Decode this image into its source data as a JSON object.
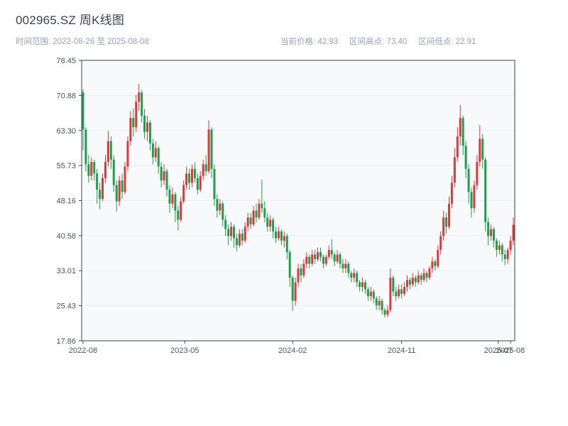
{
  "header": {
    "title": "002965.SZ 周K线图",
    "time_range": "时间范围: 2022-08-26 至 2025-08-08",
    "stat_price": "当前价格: 42.93",
    "stat_high": "区间高点: 73.40",
    "stat_low": "区间低点: 22.91"
  },
  "colors": {
    "up": "#d93a3e",
    "down": "#1f9e4d",
    "axis": "#3c434b",
    "grid": "#e9edf1",
    "plot_bg": "#f7f9fa",
    "tick_text": "#4a525c"
  },
  "chart_data": {
    "type": "candlestick",
    "title": "002965.SZ 周K线图",
    "symbol": "002965.SZ",
    "interval": "weekly",
    "start_date": "2022-08-26",
    "end_date": "2025-08-08",
    "current_price": 42.93,
    "range_high": 73.4,
    "range_low": 22.91,
    "ylim": [
      17.86,
      78.45
    ],
    "y_ticks": [
      78.45,
      70.88,
      63.3,
      55.73,
      48.16,
      40.58,
      33.01,
      25.43,
      17.86
    ],
    "x_ticks": [
      {
        "i": 0,
        "label": "2022-08"
      },
      {
        "i": 36.4,
        "label": "2023-05"
      },
      {
        "i": 75.0,
        "label": "2024-02"
      },
      {
        "i": 114.0,
        "label": "2024-11"
      },
      {
        "i": 148.6,
        "label": "2025-07"
      },
      {
        "i": 153.0,
        "label": "2025-08"
      }
    ],
    "grid": true,
    "legend": "none",
    "ohlc_columns": [
      "open",
      "high",
      "low",
      "close"
    ],
    "ohlc": [
      [
        71.5,
        72.2,
        59.0,
        63.5
      ],
      [
        63.5,
        64.0,
        54.5,
        56.0
      ],
      [
        56.0,
        58.0,
        52.0,
        53.5
      ],
      [
        53.5,
        57.5,
        52.5,
        56.5
      ],
      [
        56.5,
        57.0,
        52.5,
        54.0
      ],
      [
        54.0,
        55.0,
        47.5,
        50.5
      ],
      [
        50.5,
        52.0,
        46.3,
        48.5
      ],
      [
        48.5,
        54.0,
        48.0,
        53.0
      ],
      [
        53.0,
        58.0,
        52.0,
        56.5
      ],
      [
        56.5,
        63.2,
        55.5,
        61.0
      ],
      [
        61.0,
        62.0,
        55.0,
        57.0
      ],
      [
        57.0,
        58.0,
        50.0,
        51.5
      ],
      [
        51.5,
        52.5,
        45.8,
        48.0
      ],
      [
        48.0,
        53.5,
        47.0,
        52.5
      ],
      [
        52.5,
        54.0,
        48.5,
        50.0
      ],
      [
        50.0,
        56.5,
        49.5,
        55.5
      ],
      [
        55.5,
        62.0,
        54.5,
        61.0
      ],
      [
        61.0,
        67.5,
        60.0,
        66.0
      ],
      [
        66.0,
        68.0,
        62.0,
        64.0
      ],
      [
        64.0,
        71.0,
        63.0,
        69.5
      ],
      [
        69.5,
        73.4,
        67.5,
        71.5
      ],
      [
        71.5,
        72.0,
        65.0,
        66.5
      ],
      [
        66.5,
        68.0,
        61.5,
        63.0
      ],
      [
        63.0,
        66.5,
        61.0,
        65.0
      ],
      [
        65.0,
        65.5,
        59.0,
        60.5
      ],
      [
        60.5,
        61.5,
        56.0,
        57.5
      ],
      [
        57.5,
        61.0,
        56.5,
        59.5
      ],
      [
        59.5,
        60.0,
        54.0,
        55.5
      ],
      [
        55.5,
        56.5,
        51.0,
        52.5
      ],
      [
        52.5,
        56.0,
        51.5,
        54.5
      ],
      [
        54.5,
        55.0,
        49.0,
        50.5
      ],
      [
        50.5,
        51.5,
        45.5,
        47.5
      ],
      [
        47.5,
        51.0,
        46.5,
        49.5
      ],
      [
        49.5,
        50.0,
        43.5,
        46.0
      ],
      [
        46.0,
        47.0,
        41.7,
        44.0
      ],
      [
        44.0,
        49.0,
        43.5,
        48.0
      ],
      [
        48.0,
        52.5,
        47.5,
        51.5
      ],
      [
        51.5,
        55.5,
        50.5,
        54.0
      ],
      [
        54.0,
        55.0,
        50.5,
        52.0
      ],
      [
        52.0,
        56.0,
        51.0,
        55.0
      ],
      [
        55.0,
        56.5,
        52.0,
        53.0
      ],
      [
        53.0,
        54.0,
        49.5,
        50.5
      ],
      [
        50.5,
        54.5,
        50.0,
        53.5
      ],
      [
        53.5,
        57.0,
        52.5,
        56.0
      ],
      [
        56.0,
        58.0,
        53.5,
        54.5
      ],
      [
        54.5,
        65.5,
        54.0,
        63.5
      ],
      [
        63.5,
        64.0,
        53.0,
        55.0
      ],
      [
        55.0,
        56.0,
        47.0,
        48.5
      ],
      [
        48.5,
        49.5,
        44.5,
        46.0
      ],
      [
        46.0,
        48.5,
        45.0,
        47.5
      ],
      [
        47.5,
        48.0,
        42.5,
        44.0
      ],
      [
        44.0,
        45.0,
        40.5,
        42.0
      ],
      [
        42.0,
        43.0,
        38.5,
        40.5
      ],
      [
        40.5,
        43.5,
        39.5,
        42.5
      ],
      [
        42.5,
        43.0,
        38.0,
        40.0
      ],
      [
        40.0,
        41.0,
        37.2,
        38.5
      ],
      [
        38.5,
        42.0,
        38.0,
        41.0
      ],
      [
        41.0,
        42.0,
        38.5,
        39.5
      ],
      [
        39.5,
        43.5,
        39.0,
        42.5
      ],
      [
        42.5,
        45.5,
        41.5,
        44.5
      ],
      [
        44.5,
        45.5,
        42.0,
        43.0
      ],
      [
        43.0,
        47.0,
        42.5,
        46.0
      ],
      [
        46.0,
        47.5,
        43.5,
        44.5
      ],
      [
        44.5,
        48.5,
        44.0,
        47.5
      ],
      [
        47.5,
        52.7,
        45.5,
        46.5
      ],
      [
        46.5,
        48.0,
        43.5,
        44.5
      ],
      [
        44.5,
        45.5,
        41.5,
        42.5
      ],
      [
        42.5,
        45.0,
        41.5,
        44.0
      ],
      [
        44.0,
        44.5,
        40.0,
        41.5
      ],
      [
        41.5,
        42.5,
        39.0,
        40.0
      ],
      [
        40.0,
        42.5,
        39.5,
        41.5
      ],
      [
        41.5,
        42.0,
        38.5,
        39.5
      ],
      [
        39.5,
        41.5,
        38.0,
        40.5
      ],
      [
        40.5,
        41.0,
        35.5,
        37.0
      ],
      [
        37.0,
        37.5,
        29.5,
        31.5
      ],
      [
        31.5,
        32.0,
        24.33,
        26.5
      ],
      [
        26.5,
        31.5,
        25.5,
        30.5
      ],
      [
        30.5,
        34.5,
        29.5,
        33.5
      ],
      [
        33.5,
        34.5,
        30.5,
        32.0
      ],
      [
        32.0,
        35.5,
        31.5,
        34.5
      ],
      [
        34.5,
        37.0,
        33.5,
        36.0
      ],
      [
        36.0,
        36.5,
        33.5,
        34.5
      ],
      [
        34.5,
        37.5,
        34.0,
        36.5
      ],
      [
        36.5,
        37.5,
        34.5,
        35.5
      ],
      [
        35.5,
        38.0,
        35.0,
        37.0
      ],
      [
        37.0,
        38.0,
        35.0,
        36.0
      ],
      [
        36.0,
        36.5,
        33.5,
        34.5
      ],
      [
        34.5,
        36.5,
        34.0,
        36.0
      ],
      [
        36.0,
        38.5,
        35.5,
        37.5
      ],
      [
        37.5,
        39.8,
        35.5,
        36.5
      ],
      [
        36.5,
        37.0,
        34.0,
        35.0
      ],
      [
        35.0,
        37.5,
        34.5,
        36.5
      ],
      [
        36.5,
        37.0,
        33.5,
        34.5
      ],
      [
        34.5,
        35.5,
        32.5,
        33.5
      ],
      [
        33.5,
        35.5,
        32.5,
        34.5
      ],
      [
        34.5,
        35.0,
        31.5,
        32.5
      ],
      [
        32.5,
        33.0,
        30.5,
        31.5
      ],
      [
        31.5,
        33.5,
        30.5,
        32.5
      ],
      [
        32.5,
        33.0,
        29.5,
        30.5
      ],
      [
        30.5,
        31.0,
        28.5,
        29.5
      ],
      [
        29.5,
        31.5,
        28.5,
        30.5
      ],
      [
        30.5,
        31.0,
        28.0,
        29.0
      ],
      [
        29.0,
        29.5,
        26.5,
        27.5
      ],
      [
        27.5,
        29.5,
        26.5,
        28.5
      ],
      [
        28.5,
        29.0,
        26.0,
        27.0
      ],
      [
        27.0,
        27.5,
        24.5,
        25.5
      ],
      [
        25.5,
        27.5,
        24.5,
        26.5
      ],
      [
        26.5,
        27.0,
        23.5,
        24.5
      ],
      [
        24.5,
        25.0,
        22.91,
        23.5
      ],
      [
        23.5,
        25.5,
        23.0,
        24.5
      ],
      [
        24.5,
        33.5,
        24.0,
        31.5
      ],
      [
        31.5,
        32.0,
        27.5,
        28.5
      ],
      [
        28.5,
        29.5,
        26.5,
        27.5
      ],
      [
        27.5,
        30.0,
        27.0,
        29.0
      ],
      [
        29.0,
        30.0,
        27.0,
        28.0
      ],
      [
        28.0,
        30.5,
        27.5,
        29.5
      ],
      [
        29.5,
        32.0,
        28.5,
        31.0
      ],
      [
        31.0,
        31.5,
        29.0,
        30.0
      ],
      [
        30.0,
        32.5,
        29.5,
        31.5
      ],
      [
        31.5,
        32.0,
        29.5,
        30.5
      ],
      [
        30.5,
        33.0,
        30.0,
        32.0
      ],
      [
        32.0,
        32.5,
        30.0,
        31.0
      ],
      [
        31.0,
        33.5,
        30.5,
        32.5
      ],
      [
        32.5,
        33.0,
        30.5,
        31.5
      ],
      [
        31.5,
        34.0,
        31.0,
        33.5
      ],
      [
        33.5,
        36.0,
        32.5,
        35.0
      ],
      [
        35.0,
        35.5,
        33.0,
        34.0
      ],
      [
        34.0,
        38.5,
        33.5,
        37.5
      ],
      [
        37.5,
        41.5,
        36.5,
        40.5
      ],
      [
        40.5,
        46.0,
        39.5,
        44.5
      ],
      [
        44.5,
        45.5,
        41.0,
        42.5
      ],
      [
        42.5,
        49.0,
        42.0,
        47.5
      ],
      [
        47.5,
        53.5,
        46.5,
        52.0
      ],
      [
        52.0,
        59.5,
        51.0,
        57.5
      ],
      [
        57.5,
        64.0,
        56.5,
        62.0
      ],
      [
        62.0,
        68.8,
        60.0,
        66.0
      ],
      [
        66.0,
        66.5,
        58.0,
        60.0
      ],
      [
        60.0,
        61.0,
        53.0,
        55.0
      ],
      [
        55.0,
        56.0,
        47.5,
        50.0
      ],
      [
        50.0,
        51.0,
        44.5,
        46.5
      ],
      [
        46.5,
        52.5,
        45.5,
        51.5
      ],
      [
        51.5,
        58.0,
        50.5,
        56.5
      ],
      [
        56.5,
        64.5,
        55.5,
        61.5
      ],
      [
        61.5,
        62.5,
        55.0,
        57.0
      ],
      [
        57.0,
        57.5,
        41.5,
        43.5
      ],
      [
        43.5,
        44.5,
        38.5,
        40.5
      ],
      [
        40.5,
        43.0,
        39.5,
        42.0
      ],
      [
        42.0,
        42.5,
        38.0,
        39.5
      ],
      [
        39.5,
        40.0,
        36.0,
        37.5
      ],
      [
        37.5,
        39.5,
        36.5,
        38.5
      ],
      [
        38.5,
        39.0,
        35.0,
        36.5
      ],
      [
        36.5,
        37.5,
        34.2,
        35.5
      ],
      [
        35.5,
        38.0,
        34.5,
        37.5
      ],
      [
        37.5,
        40.5,
        36.5,
        39.5
      ],
      [
        39.5,
        44.5,
        38.5,
        42.93
      ]
    ]
  }
}
